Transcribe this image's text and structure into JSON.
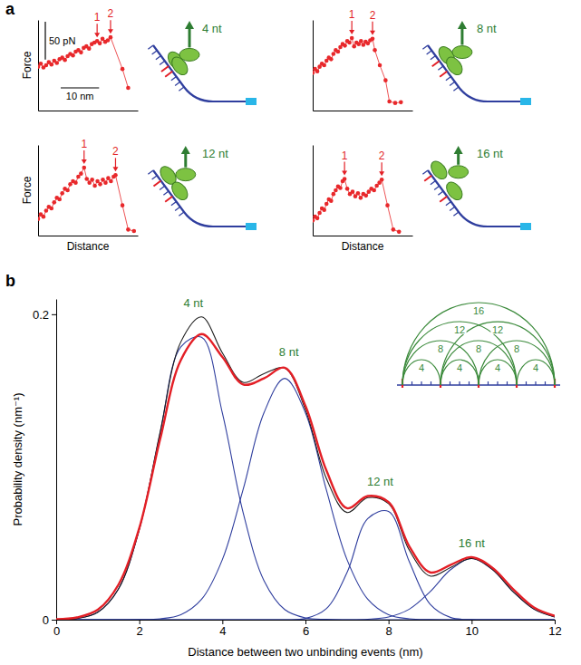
{
  "chart_data": [
    {
      "type": "line",
      "panel": "a",
      "title": "4 nt",
      "ylabel": "Force",
      "xlim": [
        0,
        26
      ],
      "ylim": [
        0,
        120
      ],
      "tick_labels": false,
      "x": [
        0,
        0.7,
        1.4,
        2.1,
        2.8,
        3.5,
        4.2,
        4.9,
        5.6,
        6.3,
        7,
        7.7,
        8.4,
        9.1,
        9.8,
        10.5,
        11.2,
        11.9,
        12.6,
        13.3,
        14,
        14.7,
        15.4,
        16.1,
        16.8,
        17.5,
        18.2,
        18.9,
        22,
        23.5
      ],
      "series": [
        {
          "color": "#e8282b",
          "marker": "circle",
          "values": [
            58,
            62,
            57,
            60,
            64,
            61,
            66,
            63,
            68,
            70,
            67,
            72,
            75,
            73,
            78,
            80,
            77,
            83,
            85,
            82,
            88,
            90,
            92,
            89,
            95,
            91,
            93,
            97,
            55,
            30
          ]
        }
      ],
      "peaks": [
        {
          "label": "1",
          "x": 15.4,
          "y": 92
        },
        {
          "label": "2",
          "x": 18.9,
          "y": 97
        }
      ],
      "scale_bars": [
        {
          "axis": "y",
          "value": 50,
          "label": "50 pN"
        },
        {
          "axis": "x",
          "value": 10,
          "label": "10 nm"
        }
      ]
    },
    {
      "type": "line",
      "title": "8 nt",
      "xlim": [
        0,
        26
      ],
      "ylim": [
        0,
        120
      ],
      "tick_labels": false,
      "x": [
        0,
        0.6,
        1.2,
        1.8,
        2.4,
        3,
        3.6,
        4.2,
        4.8,
        5.4,
        6,
        6.6,
        7.2,
        7.8,
        8.4,
        9,
        9.6,
        10.2,
        10.8,
        11.4,
        12,
        12.6,
        13.2,
        13.8,
        14.4,
        15,
        15.6,
        16.2,
        17.5,
        19,
        20,
        21.5,
        23
      ],
      "series": [
        {
          "color": "#e8282b",
          "marker": "circle",
          "values": [
            50,
            55,
            52,
            58,
            62,
            60,
            66,
            70,
            68,
            75,
            80,
            78,
            84,
            88,
            86,
            92,
            90,
            96,
            85,
            90,
            88,
            92,
            87,
            91,
            89,
            93,
            95,
            80,
            60,
            40,
            12,
            10,
            11
          ]
        }
      ],
      "peaks": [
        {
          "label": "1",
          "x": 10.2,
          "y": 96
        },
        {
          "label": "2",
          "x": 15.6,
          "y": 95
        }
      ]
    },
    {
      "type": "line",
      "title": "12 nt",
      "ylabel": "Force",
      "xlabel": "Distance",
      "xlim": [
        0,
        26
      ],
      "ylim": [
        0,
        120
      ],
      "tick_labels": false,
      "x": [
        0,
        0.7,
        1.4,
        2.1,
        2.8,
        3.5,
        4.2,
        4.9,
        5.6,
        6.3,
        7,
        7.7,
        8.4,
        9.1,
        9.8,
        10.5,
        11.2,
        12,
        12.7,
        13.4,
        14.1,
        14.8,
        15.5,
        16.2,
        16.9,
        17.6,
        18.3,
        19,
        19.7,
        20.2,
        22,
        23.5,
        25
      ],
      "series": [
        {
          "color": "#e8282b",
          "marker": "circle",
          "values": [
            22,
            28,
            25,
            33,
            38,
            36,
            44,
            50,
            48,
            56,
            62,
            60,
            68,
            72,
            70,
            78,
            82,
            90,
            75,
            70,
            74,
            66,
            72,
            68,
            74,
            70,
            76,
            72,
            78,
            80,
            40,
            8,
            6
          ]
        }
      ],
      "peaks": [
        {
          "label": "1",
          "x": 12,
          "y": 90
        },
        {
          "label": "2",
          "x": 20.2,
          "y": 80
        }
      ]
    },
    {
      "type": "line",
      "title": "16 nt",
      "xlabel": "Distance",
      "xlim": [
        0,
        26
      ],
      "ylim": [
        0,
        120
      ],
      "tick_labels": false,
      "x": [
        0,
        0.6,
        1.2,
        1.8,
        2.4,
        3,
        3.6,
        4.2,
        4.8,
        5.4,
        6,
        6.6,
        7.2,
        7.8,
        8.3,
        9,
        9.7,
        10.4,
        11.1,
        11.8,
        12.5,
        13.2,
        13.9,
        14.6,
        15.3,
        16,
        16.7,
        17.4,
        18,
        19.5,
        21,
        22.5
      ],
      "series": [
        {
          "color": "#e8282b",
          "marker": "circle",
          "values": [
            20,
            25,
            23,
            30,
            36,
            34,
            42,
            48,
            46,
            55,
            60,
            65,
            63,
            72,
            75,
            62,
            55,
            58,
            52,
            56,
            50,
            55,
            53,
            58,
            62,
            60,
            66,
            70,
            74,
            40,
            8,
            5
          ]
        }
      ],
      "peaks": [
        {
          "label": "1",
          "x": 8.3,
          "y": 75
        },
        {
          "label": "2",
          "x": 18,
          "y": 74
        }
      ]
    },
    {
      "type": "line",
      "panel": "b",
      "xlabel": "Distance between two unbinding events (nm)",
      "ylabel": "Probability density (nm⁻¹)",
      "xlim": [
        0,
        12
      ],
      "ylim": [
        0,
        0.21
      ],
      "xticks": [
        0,
        2,
        4,
        6,
        8,
        10,
        12
      ],
      "yticks": [
        0,
        0.2
      ],
      "x": [
        0,
        0.5,
        1,
        1.5,
        2,
        2.5,
        3,
        3.5,
        4,
        4.5,
        5,
        5.5,
        6,
        6.5,
        7,
        7.5,
        8,
        8.5,
        9,
        9.5,
        10,
        10.5,
        11,
        11.5,
        12
      ],
      "series": [
        {
          "color": "#2f3e9e",
          "values": [
            0.0001,
            0.0008,
            0.0049,
            0.0202,
            0.059,
            0.122,
            0.1786,
            0.1849,
            0.1353,
            0.0701,
            0.0257,
            0.0067,
            0.0012,
            0.0002,
            0,
            0,
            0,
            0,
            0,
            0,
            0,
            0,
            0,
            0,
            0
          ]
        },
        {
          "color": "#2f3e9e",
          "values": [
            0,
            0,
            0,
            0,
            0.0001,
            0.0006,
            0.0033,
            0.0134,
            0.0394,
            0.0853,
            0.1354,
            0.158,
            0.1354,
            0.0853,
            0.0394,
            0.0134,
            0.0033,
            0.0006,
            0.0001,
            0,
            0,
            0,
            0,
            0,
            0
          ]
        },
        {
          "color": "#2f3e9e",
          "values": [
            0,
            0,
            0,
            0,
            0,
            0,
            0,
            0,
            0,
            0,
            0,
            0,
            0.0008,
            0.0072,
            0.0308,
            0.0662,
            0.0709,
            0.038,
            0.0102,
            0.0014,
            0.0001,
            0,
            0,
            0,
            0
          ]
        },
        {
          "color": "#2f3e9e",
          "values": [
            0,
            0,
            0,
            0,
            0,
            0,
            0,
            0,
            0,
            0,
            0,
            0,
            0,
            0,
            0,
            0.0003,
            0.0018,
            0.0069,
            0.0183,
            0.0329,
            0.04,
            0.0329,
            0.0183,
            0.0069,
            0.0018
          ]
        },
        {
          "color": "#1a1a1a",
          "values": [
            0.0001,
            0.0008,
            0.0049,
            0.0202,
            0.0591,
            0.1226,
            0.1819,
            0.1983,
            0.1747,
            0.1554,
            0.1611,
            0.1647,
            0.1374,
            0.0927,
            0.0702,
            0.0799,
            0.076,
            0.0455,
            0.0286,
            0.0343,
            0.0401,
            0.0329,
            0.0183,
            0.0069,
            0.0018
          ]
        },
        {
          "color": "#e31f26",
          "values": [
            0.0003,
            0.0015,
            0.0065,
            0.023,
            0.06,
            0.118,
            0.17,
            0.187,
            0.172,
            0.154,
            0.158,
            0.165,
            0.14,
            0.098,
            0.073,
            0.081,
            0.077,
            0.048,
            0.031,
            0.036,
            0.041,
            0.034,
            0.02,
            0.008,
            0.0025
          ]
        }
      ],
      "annotations": [
        {
          "text": "4 nt",
          "x": 3.3,
          "y": 0.2
        },
        {
          "text": "8 nt",
          "x": 5.6,
          "y": 0.168
        },
        {
          "text": "12 nt",
          "x": 7.8,
          "y": 0.083
        },
        {
          "text": "16 nt",
          "x": 10,
          "y": 0.043
        }
      ],
      "inset": {
        "marks": 5,
        "arc_labels": [
          "4",
          "8",
          "12",
          "16"
        ]
      }
    }
  ]
}
